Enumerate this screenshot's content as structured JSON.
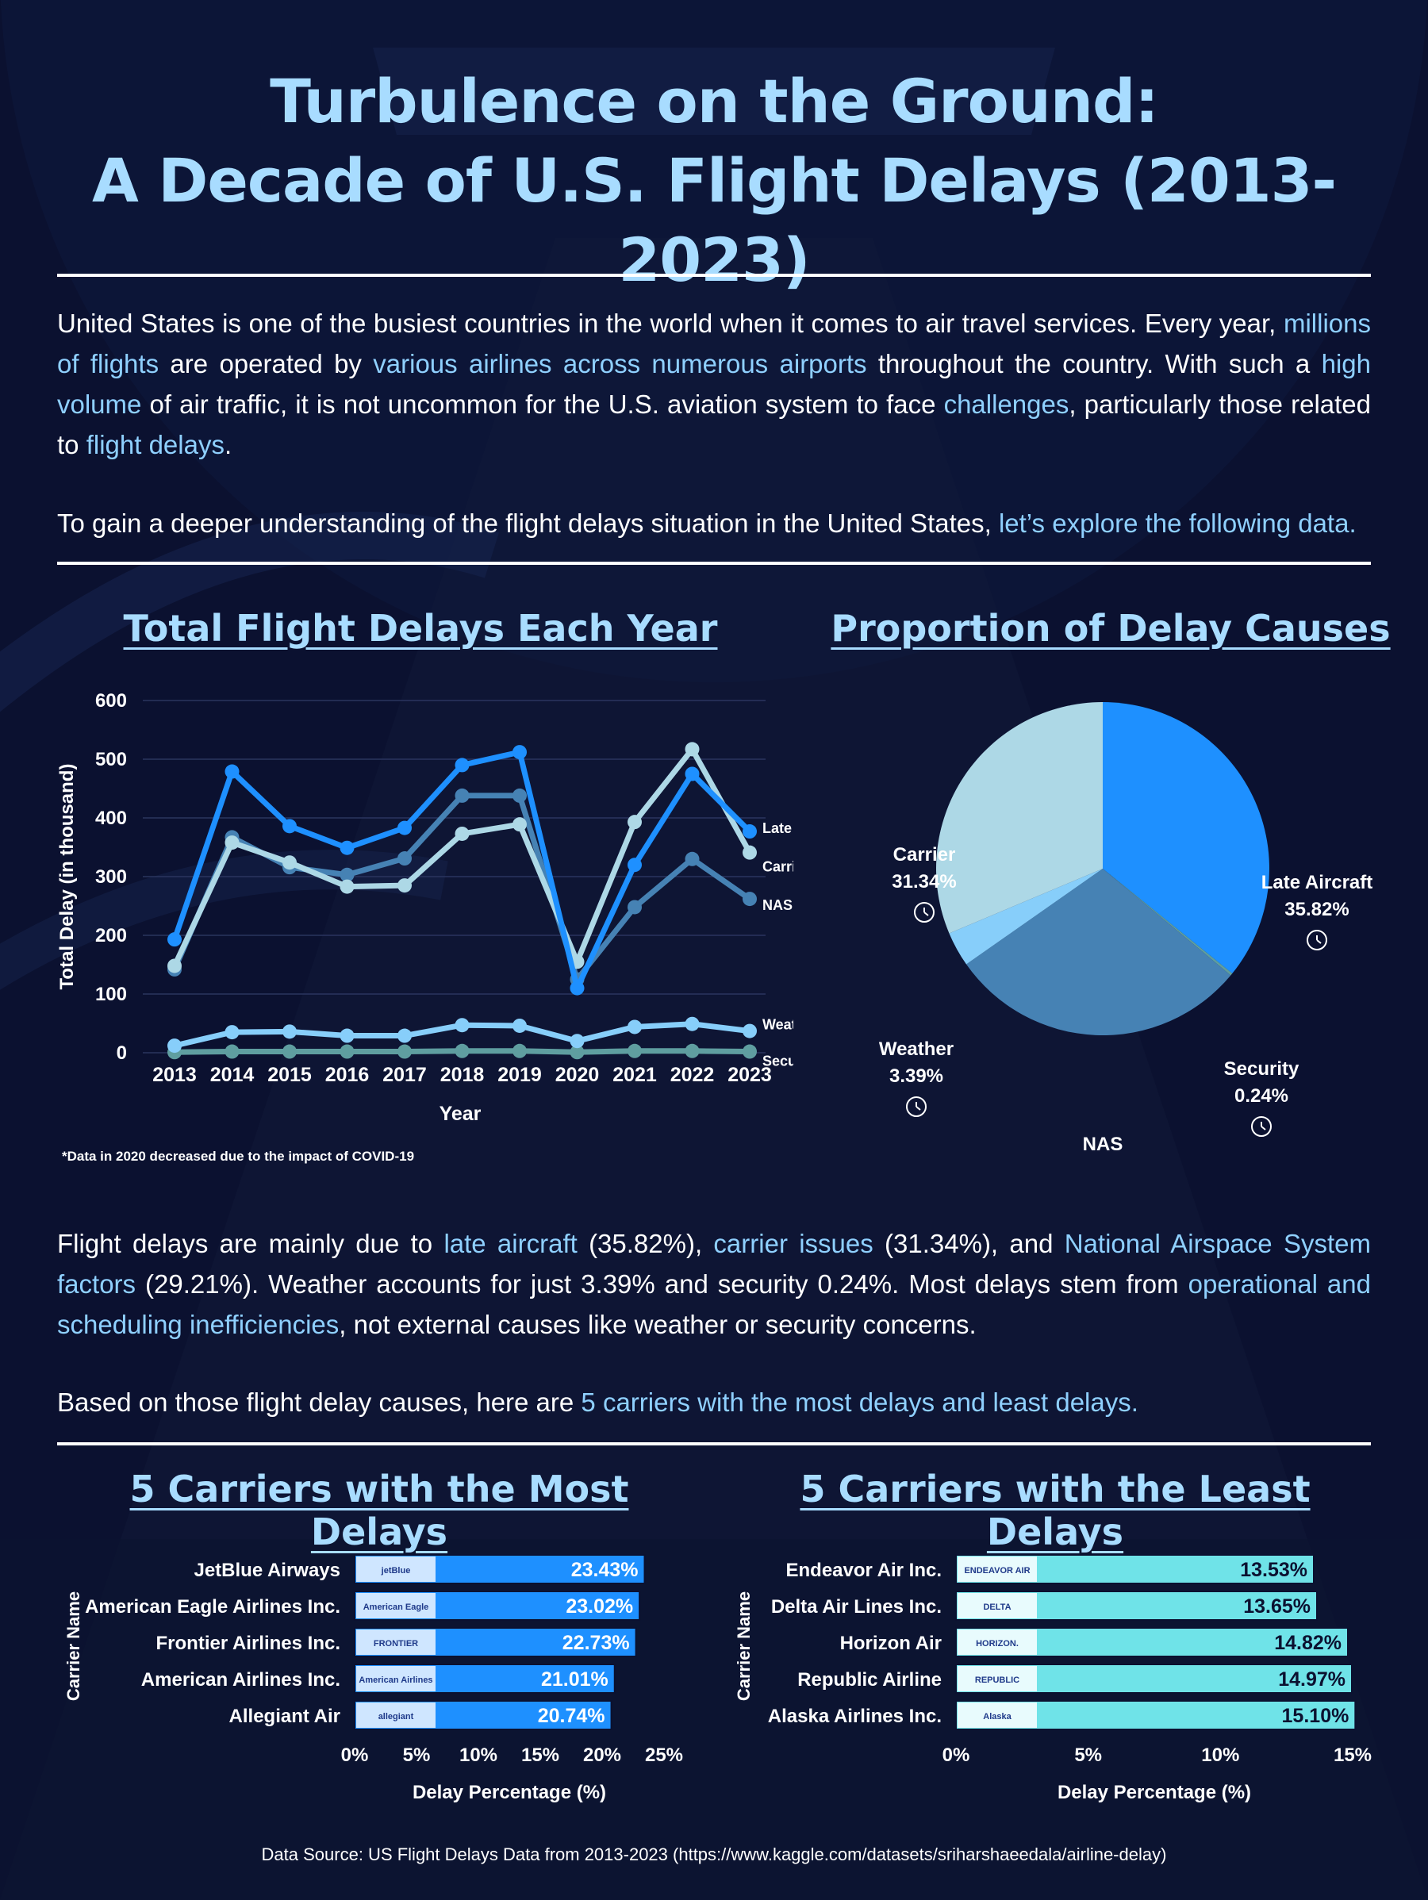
{
  "title_line1": "Turbulence on the Ground:",
  "title_line2": "A Decade of U.S. Flight Delays (2013-2023)",
  "intro": {
    "p1": [
      {
        "t": "United States is one of the busiest countries in the world when it comes to air travel services. Every year, ",
        "hl": false
      },
      {
        "t": "millions of flights",
        "hl": true
      },
      {
        "t": " are operated by ",
        "hl": false
      },
      {
        "t": "various airlines across numerous airports",
        "hl": true
      },
      {
        "t": " throughout the country. With such a ",
        "hl": false
      },
      {
        "t": "high volume",
        "hl": true
      },
      {
        "t": " of air traffic, it is not uncommon for the U.S. aviation system to face ",
        "hl": false
      },
      {
        "t": "challenges",
        "hl": true
      },
      {
        "t": ", particularly those related to ",
        "hl": false
      },
      {
        "t": "flight delays",
        "hl": true
      },
      {
        "t": ".",
        "hl": false
      }
    ],
    "p2": [
      {
        "t": "To gain a deeper understanding of the flight delays situation in the United States, ",
        "hl": false
      },
      {
        "t": "let’s explore the following data.",
        "hl": true
      }
    ]
  },
  "middle": {
    "p1": [
      {
        "t": "Flight delays are mainly due to ",
        "hl": false
      },
      {
        "t": "late aircraft",
        "hl": true
      },
      {
        "t": " (35.82%), ",
        "hl": false
      },
      {
        "t": "carrier issues",
        "hl": true
      },
      {
        "t": " (31.34%), and ",
        "hl": false
      },
      {
        "t": "National Airspace System factors",
        "hl": true
      },
      {
        "t": " (29.21%). Weather accounts for just 3.39% and security 0.24%. Most delays stem from ",
        "hl": false
      },
      {
        "t": "operational and scheduling inefficiencies",
        "hl": true
      },
      {
        "t": ", not external causes like weather or security concerns.",
        "hl": false
      }
    ],
    "p2": [
      {
        "t": "Based on those flight delay causes, here are ",
        "hl": false
      },
      {
        "t": "5 carriers with the most delays and least delays.",
        "hl": true
      }
    ]
  },
  "note": "*Data in 2020 decreased due to the impact of COVID-19",
  "source": "Data Source: US Flight Delays Data from 2013-2023 (https://www.kaggle.com/datasets/sriharshaeedala/airline-delay)",
  "colors": {
    "late_aircraft": "#1e90ff",
    "carrier": "#add8e6",
    "nas": "#4682b4",
    "weather": "#87cefa",
    "security": "#5f9ea0",
    "most_bar": "#1e90ff",
    "least_bar": "#6fe3e8",
    "title": "#a8dcff"
  },
  "chart_data": [
    {
      "type": "line",
      "title": "Total Flight Delays Each Year",
      "xlabel": "Year",
      "ylabel": "Total Delay (in thousand)",
      "x": [
        "2013",
        "2014",
        "2015",
        "2016",
        "2017",
        "2018",
        "2019",
        "2020",
        "2021",
        "2022",
        "2023"
      ],
      "ylim": [
        0,
        600
      ],
      "yticks": [
        "0",
        "100",
        "200",
        "300",
        "400",
        "500",
        "600"
      ],
      "grid": true,
      "series": [
        {
          "name": "Late Aircraft",
          "color_key": "late_aircraft",
          "values": [
            193,
            479,
            386,
            349,
            383,
            490,
            512,
            110,
            320,
            475,
            377
          ]
        },
        {
          "name": "Carrier",
          "color_key": "carrier",
          "values": [
            148,
            358,
            324,
            283,
            285,
            373,
            389,
            155,
            393,
            517,
            341
          ]
        },
        {
          "name": "NAS",
          "color_key": "nas",
          "values": [
            142,
            367,
            316,
            303,
            331,
            438,
            438,
            125,
            248,
            330,
            262
          ]
        },
        {
          "name": "Weather",
          "color_key": "weather",
          "values": [
            12,
            35,
            36,
            29,
            29,
            47,
            46,
            20,
            44,
            49,
            37
          ]
        },
        {
          "name": "Security",
          "color_key": "security",
          "values": [
            1,
            2,
            2,
            2,
            2,
            3,
            3,
            1,
            3,
            3,
            2
          ]
        }
      ]
    },
    {
      "type": "pie",
      "title": "Proportion of Delay Causes",
      "slices": [
        {
          "label": "Late Aircraft",
          "value": 35.82,
          "pct": "35.82%",
          "color_key": "late_aircraft",
          "icon": "clock-plane-icon"
        },
        {
          "label": "Security",
          "value": 0.24,
          "pct": "0.24%",
          "color_key": "security",
          "icon": "shield-lock-icon"
        },
        {
          "label": "NAS",
          "value": 29.21,
          "pct": "29.21%",
          "color_key": "nas",
          "icon": "drone-icon"
        },
        {
          "label": "Weather",
          "value": 3.39,
          "pct": "3.39%",
          "color_key": "weather",
          "icon": "rain-cloud-icon"
        },
        {
          "label": "Carrier",
          "value": 31.34,
          "pct": "31.34%",
          "color_key": "carrier",
          "icon": "pilot-icon"
        }
      ]
    },
    {
      "type": "bar",
      "orientation": "horizontal",
      "title": "5 Carriers with the Most Delays",
      "xlabel": "Delay Percentage (%)",
      "ylabel": "Carrier Name",
      "xlim": [
        0,
        25
      ],
      "xticks": [
        "0%",
        "5%",
        "10%",
        "15%",
        "20%",
        "25%"
      ],
      "categories": [
        "JetBlue Airways",
        "American Eagle Airlines Inc.",
        "Frontier Airlines Inc.",
        "American Airlines Inc.",
        "Allegiant Air"
      ],
      "values": [
        23.43,
        23.02,
        22.73,
        21.01,
        20.74
      ],
      "labels": [
        "23.43%",
        "23.02%",
        "22.73%",
        "21.01%",
        "20.74%"
      ],
      "logos": [
        "jetBlue",
        "American Eagle",
        "FRONTIER",
        "American Airlines",
        "allegiant"
      ]
    },
    {
      "type": "bar",
      "orientation": "horizontal",
      "title": "5 Carriers with the Least Delays",
      "xlabel": "Delay Percentage (%)",
      "ylabel": "Carrier Name",
      "xlim": [
        0,
        15
      ],
      "xticks": [
        "0%",
        "5%",
        "10%",
        "15%"
      ],
      "categories": [
        "Endeavor Air Inc.",
        "Delta Air Lines Inc.",
        "Horizon Air",
        "Republic Airline",
        "Alaska Airlines Inc."
      ],
      "values": [
        13.53,
        13.65,
        14.82,
        14.97,
        15.1
      ],
      "labels": [
        "13.53%",
        "13.65%",
        "14.82%",
        "14.97%",
        "15.10%"
      ],
      "logos": [
        "ENDEAVOR AIR",
        "DELTA",
        "HORIZON.",
        "REPUBLIC",
        "Alaska"
      ]
    }
  ]
}
